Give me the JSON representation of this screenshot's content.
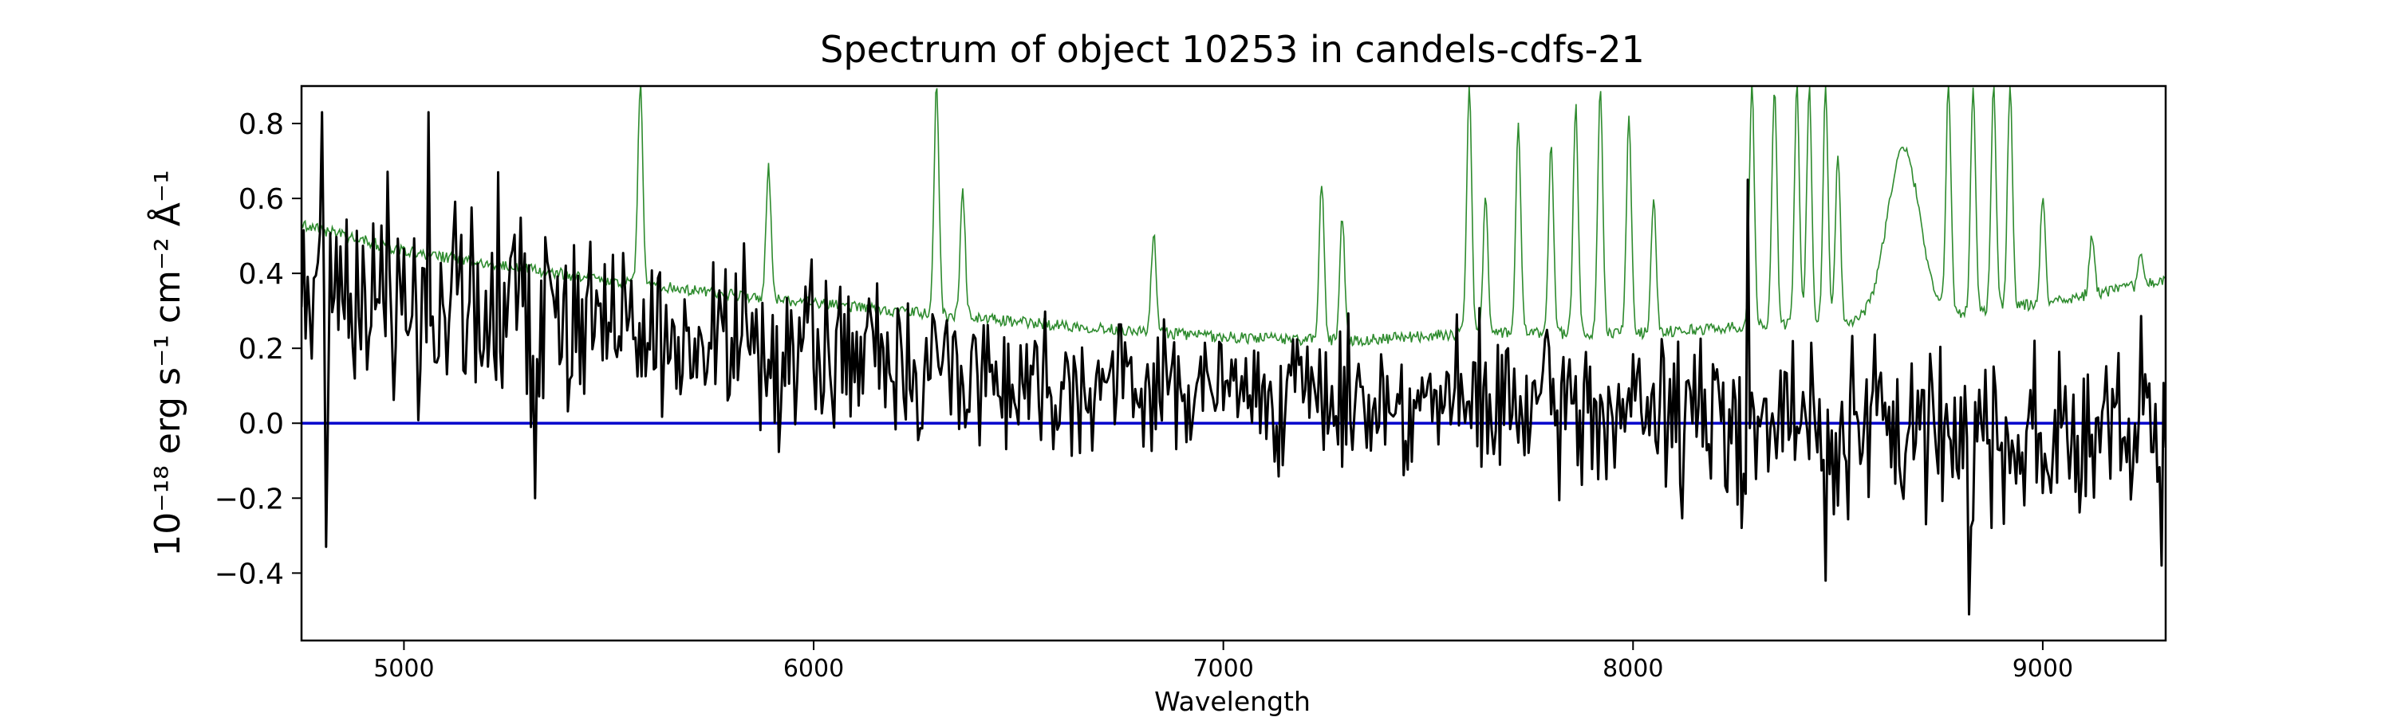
{
  "chart_data": {
    "type": "line",
    "title": "Spectrum of object 10253 in candels-cdfs-21",
    "xlabel": "Wavelength",
    "ylabel": "10⁻¹⁸ erg s⁻¹ cm⁻² Å⁻¹",
    "xlim": [
      4750,
      9300
    ],
    "ylim": [
      -0.58,
      0.9
    ],
    "xticks": [
      5000,
      6000,
      7000,
      8000,
      9000
    ],
    "xtick_labels": [
      "5000",
      "6000",
      "7000",
      "8000",
      "9000"
    ],
    "yticks": [
      -0.4,
      -0.2,
      0.0,
      0.2,
      0.4,
      0.6,
      0.8
    ],
    "ytick_labels": [
      "−0.4",
      "−0.2",
      "0.0",
      "0.2",
      "0.4",
      "0.6",
      "0.8"
    ],
    "grid": false,
    "legend": "none",
    "series": [
      {
        "role": "flux",
        "color": "#000000",
        "envelope": {
          "x": [
            4750,
            5000,
            5300,
            5600,
            5900,
            6200,
            6500,
            6800,
            7100,
            7400,
            7700,
            8000,
            8300,
            8600,
            8900,
            9300
          ],
          "mean": [
            0.34,
            0.33,
            0.28,
            0.22,
            0.2,
            0.17,
            0.12,
            0.1,
            0.08,
            0.06,
            0.04,
            0.03,
            0.0,
            -0.02,
            -0.03,
            -0.04
          ],
          "spread": [
            0.26,
            0.26,
            0.24,
            0.18,
            0.17,
            0.17,
            0.16,
            0.14,
            0.15,
            0.15,
            0.17,
            0.18,
            0.2,
            0.2,
            0.21,
            0.21
          ]
        },
        "peaks": [
          [
            4800,
            0.83
          ],
          [
            5060,
            0.83
          ],
          [
            5230,
            0.67
          ],
          [
            5830,
            0.48
          ],
          [
            8280,
            0.65
          ],
          [
            8820,
            -0.51
          ],
          [
            8470,
            -0.42
          ],
          [
            9290,
            -0.38
          ],
          [
            5320,
            -0.2
          ],
          [
            4810,
            -0.33
          ]
        ]
      },
      {
        "role": "error",
        "color": "#2e8b2e",
        "continuum": {
          "x": [
            4750,
            5000,
            5500,
            6000,
            6500,
            7000,
            7300,
            7600,
            8000,
            8300,
            8700,
            9000,
            9300
          ],
          "y": [
            0.53,
            0.46,
            0.38,
            0.32,
            0.27,
            0.23,
            0.22,
            0.24,
            0.24,
            0.26,
            0.28,
            0.32,
            0.38
          ]
        },
        "emission_lines": [
          [
            5577,
            0.9
          ],
          [
            5890,
            0.68
          ],
          [
            6300,
            0.9
          ],
          [
            6364,
            0.62
          ],
          [
            6830,
            0.5
          ],
          [
            7240,
            0.64
          ],
          [
            7290,
            0.55
          ],
          [
            7600,
            0.9
          ],
          [
            7640,
            0.6
          ],
          [
            7720,
            0.8
          ],
          [
            7800,
            0.75
          ],
          [
            7860,
            0.85
          ],
          [
            7920,
            0.9
          ],
          [
            7990,
            0.82
          ],
          [
            8050,
            0.6
          ],
          [
            8290,
            0.9
          ],
          [
            8345,
            0.9
          ],
          [
            8400,
            0.9
          ],
          [
            8430,
            0.9
          ],
          [
            8470,
            0.9
          ],
          [
            8500,
            0.72
          ],
          [
            8660,
            0.73
          ],
          [
            8770,
            0.9
          ],
          [
            8830,
            0.9
          ],
          [
            8880,
            0.9
          ],
          [
            8920,
            0.9
          ],
          [
            9000,
            0.6
          ],
          [
            9120,
            0.5
          ],
          [
            9240,
            0.46
          ]
        ]
      },
      {
        "role": "zero",
        "color": "#0000cc",
        "x": [
          4750,
          9300
        ],
        "y": [
          0.0,
          0.0
        ]
      }
    ]
  }
}
